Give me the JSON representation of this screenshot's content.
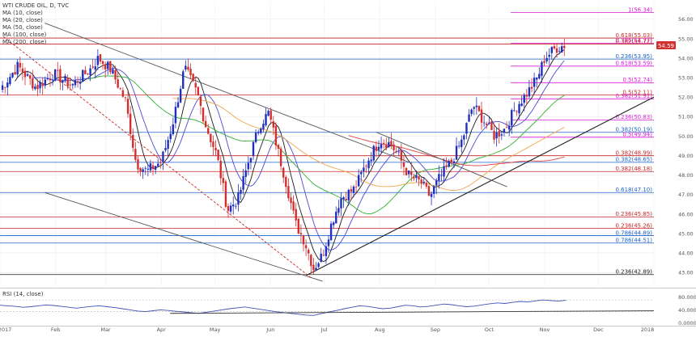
{
  "header": {
    "title": "WTI CRUDE OIL, D, TVC",
    "indicators": [
      "MA (10, close)",
      "MA (20, close)",
      "MA (50, close)",
      "MA (100, close)",
      "MA (200, close)"
    ]
  },
  "price_badge": {
    "value": "54.59",
    "color": "#d32f2f"
  },
  "colors": {
    "up": "#1f2fbf",
    "down": "#d32f2f",
    "ma10": "#1a1a1a",
    "ma20": "#4a4ad8",
    "ma50": "#2fae2f",
    "ma100": "#f2a44a",
    "ma200": "#e23a3a",
    "rsi": "#3f51b5",
    "fib_red": "#c62828",
    "fib_magenta": "#d81bd8",
    "fib_blue": "#1e63c7"
  },
  "rsi": {
    "title": "RSI (14, close)",
    "levels": [
      "80.0000",
      "40.0000",
      "0.0000"
    ]
  },
  "chart_data": {
    "type": "candlestick",
    "title": "WTI CRUDE OIL, D, TVC",
    "x_axis_labels": [
      "2017",
      "Feb",
      "Mar",
      "Apr",
      "May",
      "Jun",
      "Jul",
      "Aug",
      "Sep",
      "Oct",
      "Nov",
      "Dec",
      "2018"
    ],
    "y_axis_ticks": [
      "56.00",
      "55.00",
      "54.00",
      "53.00",
      "52.00",
      "51.00",
      "50.00",
      "49.00",
      "48.00",
      "47.00",
      "46.00",
      "45.00",
      "44.00",
      "43.00"
    ],
    "y_range": [
      42.3,
      56.9
    ],
    "x_range_days": [
      0,
      365
    ],
    "fib_levels": [
      {
        "value": 56.34,
        "label": "1(56.34)",
        "color": "magenta",
        "x_start_day": 285
      },
      {
        "value": 55.03,
        "label": "0.618(55.03)",
        "color": "red",
        "x_start_day": 0
      },
      {
        "value": 54.77,
        "label": "0.786(54.77)",
        "color": "magenta",
        "x_start_day": 285
      },
      {
        "value": 54.72,
        "label": "0.382(54.72)",
        "color": "red",
        "x_start_day": 0
      },
      {
        "value": 53.95,
        "label": "0.236(53.95)",
        "color": "blue",
        "x_start_day": 0
      },
      {
        "value": 53.59,
        "label": "0.618(53.59)",
        "color": "magenta",
        "x_start_day": 285
      },
      {
        "value": 52.74,
        "label": "0.5(52.74)",
        "color": "magenta",
        "x_start_day": 285
      },
      {
        "value": 52.11,
        "label": "0.5(52.11)",
        "color": "red",
        "x_start_day": 0
      },
      {
        "value": 51.91,
        "label": "0.382(51.91)",
        "color": "magenta",
        "x_start_day": 285
      },
      {
        "value": 50.83,
        "label": "0.236(50.83)",
        "color": "magenta",
        "x_start_day": 285
      },
      {
        "value": 50.19,
        "label": "0.382(50.19)",
        "color": "blue",
        "x_start_day": 0
      },
      {
        "value": 49.94,
        "label": "0.5(49.94)",
        "color": "magenta",
        "x_start_day": 285
      },
      {
        "value": 48.99,
        "label": "0.382(48.99)",
        "color": "red",
        "x_start_day": 0
      },
      {
        "value": 48.65,
        "label": "0.382(48.65)",
        "color": "blue",
        "x_start_day": 0
      },
      {
        "value": 48.18,
        "label": "0.382(48.18)",
        "color": "red",
        "x_start_day": 0
      },
      {
        "value": 47.1,
        "label": "0.618(47.10)",
        "color": "blue",
        "x_start_day": 0
      },
      {
        "value": 45.85,
        "label": "0.236(45.85)",
        "color": "red",
        "x_start_day": 0
      },
      {
        "value": 45.26,
        "label": "0.236(45.26)",
        "color": "red",
        "x_start_day": 0
      },
      {
        "value": 44.89,
        "label": "0.786(44.89)",
        "color": "blue",
        "x_start_day": 0
      },
      {
        "value": 44.51,
        "label": "0.786(44.51)",
        "color": "blue",
        "x_start_day": 0
      },
      {
        "value": 42.89,
        "label": "0.236(42.89)",
        "color": "black",
        "x_start_day": 0
      }
    ],
    "trendlines": [
      {
        "name": "upper-channel",
        "from": {
          "day": 25,
          "value": 55.8
        },
        "to": {
          "day": 230,
          "value": 48.6
        }
      },
      {
        "name": "lower-channel",
        "from": {
          "day": 25,
          "value": 47.1
        },
        "to": {
          "day": 180,
          "value": 42.55
        }
      },
      {
        "name": "support-rising",
        "from": {
          "day": 171,
          "value": 42.85
        },
        "to": {
          "day": 365,
          "value": 52.0
        }
      },
      {
        "name": "descending-dashed",
        "from": {
          "day": 2,
          "value": 55.1
        },
        "to": {
          "day": 174,
          "value": 42.7
        }
      },
      {
        "name": "july-slope",
        "from": {
          "day": 210,
          "value": 50.2
        },
        "to": {
          "day": 283,
          "value": 47.4
        }
      }
    ],
    "rsi_values": [
      62,
      60,
      58,
      55,
      57,
      60,
      63,
      61,
      58,
      55,
      52,
      55,
      58,
      60,
      57,
      54,
      50,
      46,
      42,
      40,
      43,
      46,
      44,
      41,
      39,
      36,
      34,
      38,
      42,
      46,
      50,
      53,
      56,
      52,
      48,
      44,
      40,
      37,
      34,
      31,
      28,
      27,
      33,
      39,
      44,
      50,
      55,
      60,
      58,
      54,
      50,
      52,
      57,
      62,
      60,
      56,
      58,
      62,
      66,
      64,
      60,
      57,
      59,
      63,
      67,
      70,
      68,
      72,
      75,
      73,
      77,
      80,
      78,
      76,
      79
    ]
  }
}
